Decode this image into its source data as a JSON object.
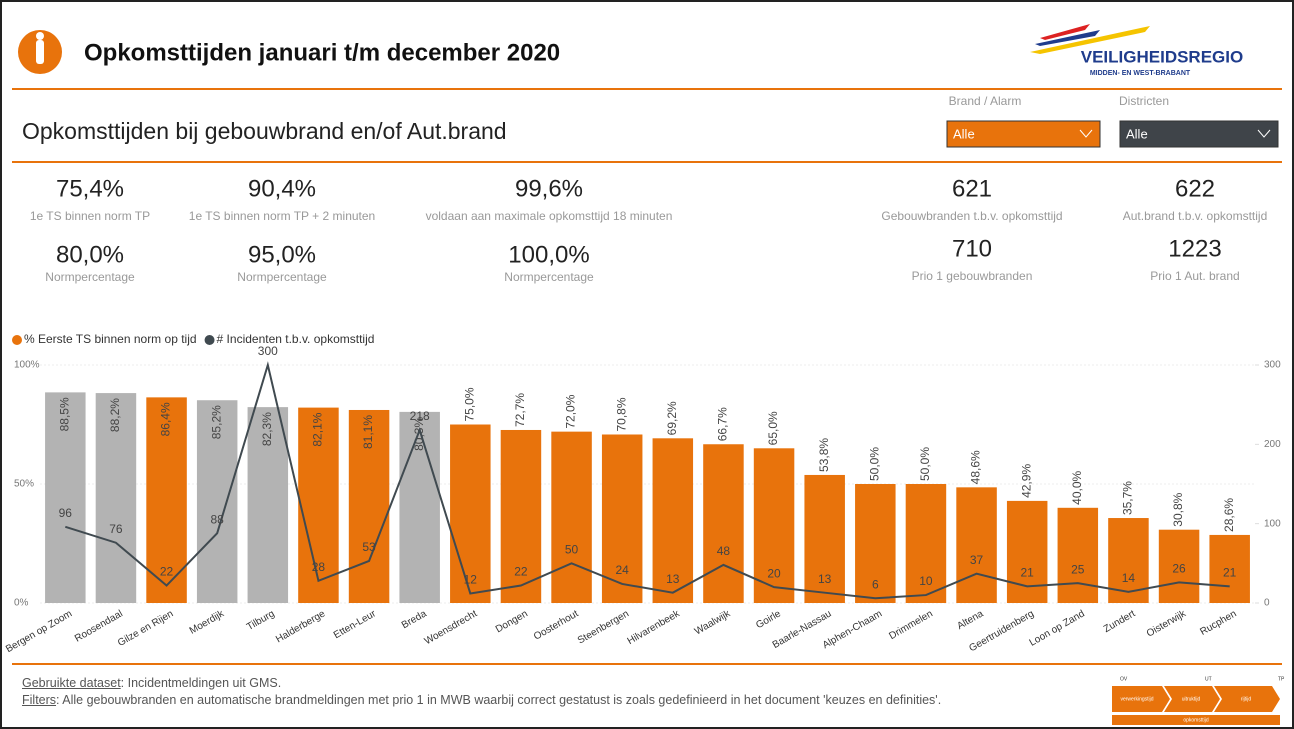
{
  "header": {
    "title": "Opkomsttijden januari t/m december 2020",
    "logo_name": "VEILIGHEIDSREGIO",
    "logo_sub": "MIDDEN- EN WEST-BRABANT"
  },
  "subtitle": "Opkomsttijden bij gebouwbrand en/of Aut.brand",
  "filters": [
    {
      "label": "Brand / Alarm",
      "value": "Alle"
    },
    {
      "label": "Districten",
      "value": "Alle"
    }
  ],
  "kpis": [
    {
      "value": "75,4%",
      "label": "1e TS binnen norm TP",
      "norm": "80,0%",
      "norm_label": "Normpercentage"
    },
    {
      "value": "90,4%",
      "label": "1e TS binnen norm TP + 2 minuten",
      "norm": "95,0%",
      "norm_label": "Normpercentage"
    },
    {
      "value": "99,6%",
      "label": "voldaan aan maximale opkomsttijd 18 minuten",
      "norm": "100,0%",
      "norm_label": "Normpercentage"
    }
  ],
  "counts": [
    {
      "value": "621",
      "label": "Gebouwbranden t.b.v. opkomsttijd"
    },
    {
      "value": "622",
      "label": "Aut.brand t.b.v. opkomsttijd"
    },
    {
      "value": "710",
      "label": "Prio 1 gebouwbranden"
    },
    {
      "value": "1223",
      "label": "Prio 1 Aut. brand"
    }
  ],
  "chart_data": {
    "type": "bar_line",
    "categories": [
      "Bergen op Zoom",
      "Roosendaal",
      "Gilze en Rijen",
      "Moerdijk",
      "Tilburg",
      "Halderberge",
      "Etten-Leur",
      "Breda",
      "Woensdrecht",
      "Dongen",
      "Oosterhout",
      "Steenbergen",
      "Hilvarenbeek",
      "Waalwijk",
      "Goirle",
      "Baarle-Nassau",
      "Alphen-Chaam",
      "Drimmelen",
      "Altena",
      "Geertruidenberg",
      "Loon op Zand",
      "Zundert",
      "Oisterwijk",
      "Rucphen"
    ],
    "series": [
      {
        "name": "% Eerste TS binnen norm op tijd",
        "type": "bar",
        "color": "#e8730c",
        "bar_colors": [
          "#b3b3b3",
          "#b3b3b3",
          "#e8730c",
          "#b3b3b3",
          "#b3b3b3",
          "#e8730c",
          "#e8730c",
          "#b3b3b3",
          "#e8730c",
          "#e8730c",
          "#e8730c",
          "#e8730c",
          "#e8730c",
          "#e8730c",
          "#e8730c",
          "#e8730c",
          "#e8730c",
          "#e8730c",
          "#e8730c",
          "#e8730c",
          "#e8730c",
          "#e8730c",
          "#e8730c",
          "#e8730c"
        ],
        "values": [
          88.5,
          88.2,
          86.4,
          85.2,
          82.3,
          82.1,
          81.1,
          80.3,
          75.0,
          72.7,
          72.0,
          70.8,
          69.2,
          66.7,
          65.0,
          53.8,
          50.0,
          50.0,
          48.6,
          42.9,
          40.0,
          35.7,
          30.8,
          28.6
        ],
        "value_labels": [
          "88,5%",
          "88,2%",
          "86,4%",
          "85,2%",
          "82,3%",
          "82,1%",
          "81,1%",
          "80,3%",
          "75,0%",
          "72,7%",
          "72,0%",
          "70,8%",
          "69,2%",
          "66,7%",
          "65,0%",
          "53,8%",
          "50,0%",
          "50,0%",
          "48,6%",
          "42,9%",
          "40,0%",
          "35,7%",
          "30,8%",
          "28,6%"
        ]
      },
      {
        "name": "# Incidenten t.b.v. opkomsttijd",
        "type": "line",
        "axis": "y2",
        "color": "#404a50",
        "values": [
          96,
          76,
          22,
          88,
          300,
          28,
          53,
          218,
          12,
          22,
          50,
          24,
          13,
          48,
          20,
          13,
          6,
          10,
          37,
          21,
          25,
          14,
          26,
          21
        ]
      }
    ],
    "ylim": [
      0,
      100
    ],
    "yticks": [
      {
        "value": 0,
        "label": "0%"
      },
      {
        "value": 50,
        "label": "50%"
      },
      {
        "value": 100,
        "label": "100%"
      }
    ],
    "y2lim": [
      0,
      300
    ],
    "y2ticks": [
      0,
      100,
      200,
      300
    ],
    "grid": true,
    "legend": "top-left"
  },
  "footer": {
    "dataset_label": "Gebruikte dataset",
    "dataset_text": ": Incidentmeldingen uit GMS.",
    "filters_label": "Filters",
    "filters_text": ": Alle gebouwbranden en automatische brandmeldingen met prio 1 in MWB waarbij correct gestatust is zoals gedefinieerd in het document 'keuzes en definities'.",
    "diagram": {
      "ov": "OV",
      "ut": "UT",
      "tp": "TP",
      "steps": [
        "verwerkingstijd",
        "uitruktijd",
        "rijtijd"
      ],
      "total": "opkomsttijd"
    }
  }
}
